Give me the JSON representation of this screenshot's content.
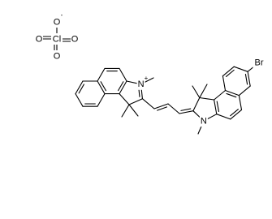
{
  "perchlorate": {
    "central": "Cl",
    "oxygens": [
      "O",
      "O",
      "O",
      "O"
    ],
    "charge": "-"
  },
  "cation": {
    "nitrogens": [
      "N",
      "N"
    ],
    "charge": "+",
    "substituent": "Br"
  }
}
